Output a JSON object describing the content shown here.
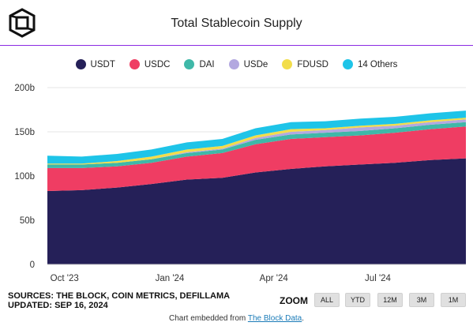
{
  "header": {
    "title": "Total Stablecoin Supply"
  },
  "colors": {
    "USDT": "#252058",
    "USDC": "#ef3d63",
    "DAI": "#3fb8a8",
    "USDe": "#b3a8e0",
    "FDUSD": "#f2dd4a",
    "14 Others": "#1ec4e8",
    "brand_rule": "#8a2be2"
  },
  "chart_data": {
    "type": "area",
    "stacked": true,
    "title": "Total Stablecoin Supply",
    "legend_position": "top",
    "grid": true,
    "ylim": [
      0,
      200
    ],
    "yticks": [
      "0",
      "50b",
      "100b",
      "150b",
      "200b"
    ],
    "yticks_values": [
      0,
      50,
      100,
      150,
      200
    ],
    "xticks": [
      "Oct '23",
      "Jan '24",
      "Apr '24",
      "Jul '24"
    ],
    "x": [
      "2023-09-16",
      "2023-10-16",
      "2023-11-16",
      "2023-12-16",
      "2024-01-16",
      "2024-02-16",
      "2024-03-16",
      "2024-04-16",
      "2024-05-16",
      "2024-06-16",
      "2024-07-16",
      "2024-08-16",
      "2024-09-16"
    ],
    "series": [
      {
        "name": "USDT",
        "values": [
          83,
          84,
          87,
          91,
          96,
          98,
          104,
          108,
          111,
          113,
          115,
          118,
          120
        ]
      },
      {
        "name": "USDC",
        "values": [
          26,
          25,
          24,
          24,
          26,
          28,
          32,
          34,
          33,
          33,
          34,
          35,
          36
        ]
      },
      {
        "name": "DAI",
        "values": [
          4,
          4,
          4,
          4,
          4,
          4,
          5,
          5,
          5,
          5,
          5,
          5,
          5
        ]
      },
      {
        "name": "USDe",
        "values": [
          0,
          0,
          0,
          0,
          1,
          1,
          2,
          3,
          3,
          4,
          3,
          3,
          3
        ]
      },
      {
        "name": "FDUSD",
        "values": [
          1,
          1,
          2,
          3,
          3,
          3,
          3,
          3,
          2,
          2,
          2,
          2,
          2
        ]
      },
      {
        "name": "14 Others",
        "values": [
          9,
          8,
          8,
          8,
          8,
          8,
          8,
          8,
          8,
          8,
          8,
          8,
          8
        ]
      }
    ]
  },
  "sources": {
    "line1": "SOURCES: THE BLOCK, COIN METRICS, DEFILLAMA",
    "line2": "UPDATED: SEP 16, 2024"
  },
  "zoom": {
    "label": "ZOOM",
    "buttons": [
      "ALL",
      "YTD",
      "12M",
      "3M",
      "1M"
    ]
  },
  "footer": {
    "text": "Chart embedded from ",
    "link": "The Block Data",
    "end": "."
  }
}
